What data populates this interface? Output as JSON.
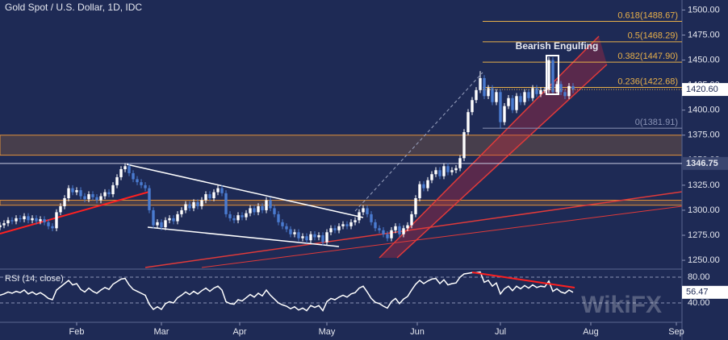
{
  "chart_data": {
    "type": "candlestick",
    "title": "Gold Spot / U.S. Dollar, 1D, IDC",
    "annotation": "Bearish Engulfing",
    "watermark": "WikiFX",
    "up_color": "#ffffff",
    "down_color": "#4a7bd0",
    "x": [
      0,
      1,
      2,
      3,
      4,
      5,
      6,
      7,
      8,
      9,
      10,
      11,
      12,
      13,
      14,
      15,
      16,
      17,
      18,
      19,
      20,
      21,
      22,
      23,
      24,
      25,
      26,
      27,
      28,
      29,
      30,
      31,
      32,
      33,
      34,
      35,
      36,
      37,
      38,
      39,
      40,
      41,
      42,
      43,
      44,
      45,
      46,
      47,
      48,
      49,
      50,
      51,
      52,
      53,
      54,
      55,
      56,
      57,
      58,
      59,
      60,
      61,
      62,
      63,
      64,
      65,
      66,
      67,
      68,
      69,
      70,
      71,
      72,
      73,
      74,
      75,
      76,
      77,
      78,
      79,
      80,
      81,
      82,
      83,
      84,
      85,
      86,
      87,
      88,
      89,
      90,
      91,
      92,
      93,
      94,
      95,
      96,
      97,
      98,
      99,
      100,
      101,
      102,
      103,
      104,
      105,
      106,
      107,
      108,
      109,
      110,
      111,
      112,
      113,
      114,
      115,
      116,
      117,
      118,
      119,
      120,
      121,
      122,
      123,
      124,
      125,
      126,
      127,
      128,
      129,
      130,
      131,
      132,
      133,
      134,
      135,
      136,
      137,
      138,
      139,
      140,
      141,
      142
    ],
    "open": [
      1283,
      1285,
      1287,
      1290,
      1289,
      1292,
      1291,
      1294,
      1290,
      1292,
      1289,
      1291,
      1288,
      1284,
      1282,
      1298,
      1304,
      1312,
      1322,
      1318,
      1320,
      1314,
      1311,
      1316,
      1313,
      1310,
      1314,
      1318,
      1316,
      1325,
      1333,
      1341,
      1344,
      1337,
      1331,
      1328,
      1325,
      1322,
      1300,
      1285,
      1288,
      1283,
      1290,
      1292,
      1289,
      1296,
      1300,
      1306,
      1302,
      1308,
      1304,
      1310,
      1316,
      1312,
      1318,
      1322,
      1317,
      1296,
      1292,
      1290,
      1295,
      1293,
      1297,
      1302,
      1298,
      1304,
      1300,
      1310,
      1302,
      1296,
      1288,
      1284,
      1281,
      1276,
      1278,
      1272,
      1274,
      1270,
      1276,
      1273,
      1275,
      1268,
      1278,
      1282,
      1280,
      1284,
      1286,
      1284,
      1288,
      1290,
      1298,
      1302,
      1296,
      1288,
      1282,
      1280,
      1276,
      1272,
      1280,
      1284,
      1276,
      1282,
      1285,
      1296,
      1312,
      1326,
      1322,
      1330,
      1336,
      1340,
      1334,
      1344,
      1338,
      1340,
      1342,
      1352,
      1378,
      1398,
      1410,
      1420,
      1432,
      1414,
      1422,
      1408,
      1418,
      1388,
      1404,
      1412,
      1400,
      1414,
      1408,
      1418,
      1412,
      1422,
      1416,
      1420,
      1420,
      1450,
      1418,
      1426,
      1418,
      1414,
      1424
    ],
    "high": [
      1288,
      1290,
      1293,
      1293,
      1295,
      1295,
      1297,
      1297,
      1295,
      1295,
      1294,
      1294,
      1291,
      1287,
      1301,
      1307,
      1315,
      1325,
      1325,
      1323,
      1323,
      1317,
      1319,
      1319,
      1316,
      1317,
      1321,
      1321,
      1328,
      1336,
      1344,
      1347,
      1347,
      1340,
      1334,
      1331,
      1328,
      1325,
      1303,
      1291,
      1291,
      1293,
      1295,
      1295,
      1299,
      1303,
      1309,
      1309,
      1311,
      1311,
      1313,
      1319,
      1319,
      1321,
      1325,
      1325,
      1320,
      1299,
      1295,
      1298,
      1298,
      1300,
      1305,
      1305,
      1307,
      1307,
      1313,
      1313,
      1305,
      1299,
      1291,
      1287,
      1284,
      1281,
      1281,
      1277,
      1277,
      1279,
      1279,
      1278,
      1278,
      1281,
      1285,
      1285,
      1287,
      1289,
      1289,
      1291,
      1293,
      1301,
      1305,
      1305,
      1299,
      1291,
      1285,
      1283,
      1279,
      1283,
      1287,
      1287,
      1285,
      1288,
      1299,
      1315,
      1329,
      1329,
      1333,
      1339,
      1343,
      1343,
      1347,
      1347,
      1343,
      1345,
      1355,
      1381,
      1401,
      1413,
      1423,
      1439,
      1435,
      1425,
      1425,
      1421,
      1421,
      1407,
      1415,
      1415,
      1417,
      1417,
      1421,
      1421,
      1425,
      1425,
      1423,
      1423,
      1453,
      1453,
      1429,
      1429,
      1421,
      1427,
      1427
    ],
    "low": [
      1280,
      1282,
      1284,
      1286,
      1286,
      1288,
      1288,
      1287,
      1287,
      1286,
      1286,
      1285,
      1281,
      1279,
      1279,
      1295,
      1301,
      1309,
      1315,
      1315,
      1311,
      1308,
      1308,
      1310,
      1307,
      1307,
      1311,
      1313,
      1313,
      1322,
      1330,
      1338,
      1334,
      1328,
      1325,
      1322,
      1319,
      1297,
      1282,
      1282,
      1280,
      1280,
      1287,
      1286,
      1286,
      1293,
      1297,
      1299,
      1299,
      1301,
      1301,
      1307,
      1309,
      1309,
      1315,
      1314,
      1293,
      1289,
      1287,
      1287,
      1290,
      1290,
      1294,
      1295,
      1295,
      1297,
      1297,
      1299,
      1293,
      1285,
      1281,
      1278,
      1273,
      1273,
      1269,
      1269,
      1267,
      1267,
      1270,
      1270,
      1265,
      1265,
      1275,
      1277,
      1277,
      1281,
      1281,
      1281,
      1285,
      1287,
      1295,
      1293,
      1285,
      1279,
      1277,
      1273,
      1269,
      1269,
      1277,
      1273,
      1273,
      1279,
      1282,
      1293,
      1309,
      1319,
      1319,
      1327,
      1333,
      1331,
      1331,
      1335,
      1335,
      1337,
      1339,
      1349,
      1375,
      1395,
      1407,
      1417,
      1411,
      1411,
      1405,
      1405,
      1382,
      1385,
      1401,
      1397,
      1397,
      1405,
      1405,
      1409,
      1409,
      1413,
      1413,
      1417,
      1417,
      1415,
      1415,
      1415,
      1411,
      1411,
      1417
    ],
    "close": [
      1285,
      1287,
      1290,
      1289,
      1292,
      1291,
      1294,
      1290,
      1292,
      1289,
      1291,
      1288,
      1284,
      1282,
      1298,
      1304,
      1312,
      1322,
      1318,
      1320,
      1314,
      1311,
      1316,
      1313,
      1310,
      1314,
      1318,
      1316,
      1325,
      1333,
      1341,
      1344,
      1337,
      1331,
      1328,
      1325,
      1322,
      1300,
      1285,
      1288,
      1283,
      1290,
      1292,
      1289,
      1296,
      1300,
      1306,
      1302,
      1308,
      1304,
      1310,
      1316,
      1312,
      1318,
      1322,
      1317,
      1296,
      1292,
      1290,
      1295,
      1293,
      1297,
      1302,
      1298,
      1304,
      1300,
      1310,
      1302,
      1296,
      1288,
      1284,
      1281,
      1276,
      1278,
      1272,
      1274,
      1270,
      1276,
      1273,
      1275,
      1268,
      1278,
      1282,
      1280,
      1284,
      1286,
      1284,
      1288,
      1290,
      1298,
      1302,
      1296,
      1288,
      1282,
      1280,
      1276,
      1272,
      1280,
      1284,
      1276,
      1282,
      1285,
      1296,
      1312,
      1326,
      1322,
      1330,
      1336,
      1340,
      1334,
      1344,
      1338,
      1340,
      1342,
      1352,
      1378,
      1398,
      1410,
      1420,
      1432,
      1414,
      1422,
      1408,
      1418,
      1388,
      1404,
      1412,
      1400,
      1414,
      1408,
      1418,
      1412,
      1422,
      1416,
      1420,
      1420,
      1450,
      1418,
      1426,
      1418,
      1414,
      1424,
      1420.6
    ],
    "close_label": "1420.60",
    "xlim": [
      0,
      169
    ],
    "xticks": [
      {
        "value": 19,
        "label": "Feb"
      },
      {
        "value": 40,
        "label": "Mar"
      },
      {
        "value": 59.4,
        "label": "Apr"
      },
      {
        "value": 81,
        "label": "May"
      },
      {
        "value": 103.4,
        "label": "Jun"
      },
      {
        "value": 124,
        "label": "Jul"
      },
      {
        "value": 146.4,
        "label": "Aug"
      },
      {
        "value": 167.6,
        "label": "Sep"
      }
    ],
    "ylim": [
      1242,
      1510
    ],
    "yticks": [
      {
        "value": 1250,
        "label": "1250.00"
      },
      {
        "value": 1275,
        "label": "1275.00"
      },
      {
        "value": 1300,
        "label": "1300.00"
      },
      {
        "value": 1325,
        "label": "1325.00"
      },
      {
        "value": 1350,
        "label": "1350.00"
      },
      {
        "value": 1375,
        "label": "1375.00"
      },
      {
        "value": 1400,
        "label": "1400.00"
      },
      {
        "value": 1425,
        "label": "1425.00"
      },
      {
        "value": 1450,
        "label": "1450.00"
      },
      {
        "value": 1475,
        "label": "1475.00"
      },
      {
        "value": 1500,
        "label": "1500.00"
      }
    ],
    "level": {
      "value": 1346.75,
      "label": "1346.75"
    },
    "zones": [
      [
        1355,
        1375
      ],
      [
        1305,
        1310
      ]
    ],
    "fib": [
      {
        "value": 1381.91,
        "label": "0(1381.91)"
      },
      {
        "value": 1422.68,
        "label": "0.236(1422.68)"
      },
      {
        "value": 1447.9,
        "label": "0.382(1447.90)"
      },
      {
        "value": 1468.29,
        "label": "0.5(1468.29)"
      },
      {
        "value": 1488.67,
        "label": "0.618(1488.67)"
      }
    ],
    "rsi": {
      "name": "RSI (14, close)",
      "color": "#ffffff",
      "ylim": [
        10,
        90
      ],
      "yticks": [
        {
          "value": 80,
          "label": "80.00"
        },
        {
          "value": 40,
          "label": "40.00"
        }
      ],
      "values": [
        52,
        54,
        57,
        55,
        58,
        56,
        60,
        54,
        57,
        53,
        56,
        52,
        47,
        45,
        60,
        65,
        70,
        75,
        68,
        70,
        61,
        57,
        63,
        58,
        55,
        60,
        64,
        61,
        69,
        73,
        77,
        78,
        68,
        61,
        58,
        55,
        52,
        38,
        30,
        34,
        30,
        39,
        42,
        40,
        48,
        52,
        57,
        53,
        58,
        54,
        59,
        63,
        58,
        63,
        66,
        60,
        42,
        39,
        38,
        45,
        43,
        48,
        53,
        49,
        55,
        51,
        60,
        52,
        46,
        40,
        37,
        35,
        31,
        34,
        29,
        32,
        28,
        36,
        33,
        36,
        28,
        42,
        47,
        45,
        49,
        52,
        49,
        54,
        56,
        63,
        66,
        57,
        47,
        41,
        39,
        35,
        32,
        42,
        47,
        39,
        46,
        50,
        60,
        69,
        75,
        70,
        74,
        77,
        78,
        70,
        76,
        68,
        70,
        71,
        80,
        85,
        86,
        87,
        87,
        88,
        72,
        75,
        66,
        71,
        54,
        62,
        66,
        59,
        66,
        62,
        67,
        63,
        68,
        64,
        66,
        65,
        74,
        58,
        62,
        57,
        55,
        60,
        56.47
      ]
    }
  }
}
